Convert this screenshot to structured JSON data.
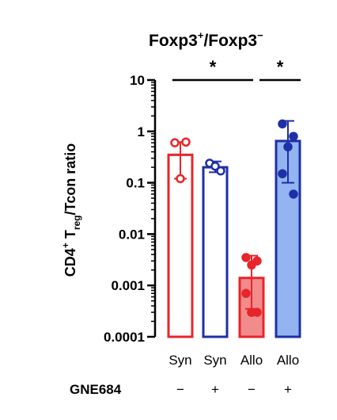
{
  "chart_data": {
    "type": "bar",
    "title": "Foxp3+/Foxp3−",
    "title_parts": {
      "base_a": "Foxp3",
      "sup_a": "+",
      "mid": "/Foxp3",
      "sup_b": "−"
    },
    "ylabel": "CD4+ Treg/Tcon ratio",
    "ylabel_parts": {
      "a": "CD4",
      "a_sup": "+",
      "b": " T",
      "b_sub": "reg",
      "c": "/Tcon ratio"
    },
    "yscale": "log",
    "ylim": [
      0.0001,
      10
    ],
    "yticks": [
      "10",
      "1",
      "0.1",
      "0.01",
      "0.001",
      "0.0001"
    ],
    "ytick_values": [
      10,
      1,
      0.1,
      0.01,
      0.001,
      0.0001
    ],
    "categories": [
      "Syn",
      "Syn",
      "Allo",
      "Allo"
    ],
    "row_label": "GNE684",
    "gne684": [
      "−",
      "+",
      "−",
      "+"
    ],
    "bars": [
      {
        "category": "Syn",
        "gne684": "−",
        "value": 0.35,
        "err_low": 0.12,
        "err_high": 0.62,
        "points": [
          0.6,
          0.62,
          0.12
        ],
        "fill": "#ffffff",
        "edge": "#e8252a",
        "marker_fill": "#ffffff",
        "marker_edge": "#e8252a"
      },
      {
        "category": "Syn",
        "gne684": "+",
        "value": 0.2,
        "err_low": 0.16,
        "err_high": 0.26,
        "points": [
          0.24,
          0.17,
          0.21
        ],
        "fill": "#ffffff",
        "edge": "#1e2fa8",
        "marker_fill": "#ffffff",
        "marker_edge": "#1e2fa8"
      },
      {
        "category": "Allo",
        "gne684": "−",
        "value": 0.0014,
        "err_low": 0.00035,
        "err_high": 0.0038,
        "points": [
          0.0035,
          0.003,
          0.0025,
          0.0007,
          0.0003,
          0.0003,
          0.0003
        ],
        "fill": "#f28b8b",
        "edge": "#e8252a",
        "marker_fill": "#e8252a",
        "marker_edge": "#e8252a"
      },
      {
        "category": "Allo",
        "gne684": "+",
        "value": 0.65,
        "err_low": 0.1,
        "err_high": 1.6,
        "points": [
          1.4,
          0.8,
          0.5,
          0.15,
          0.06
        ],
        "fill": "#93b4f0",
        "edge": "#1e2fa8",
        "marker_fill": "#1e2fa8",
        "marker_edge": "#1e2fa8"
      }
    ],
    "significance": [
      {
        "from": 0,
        "to": 2,
        "label": "*"
      },
      {
        "from": 2,
        "to": 3,
        "label": "*"
      }
    ],
    "grid": false,
    "legend": "none"
  }
}
